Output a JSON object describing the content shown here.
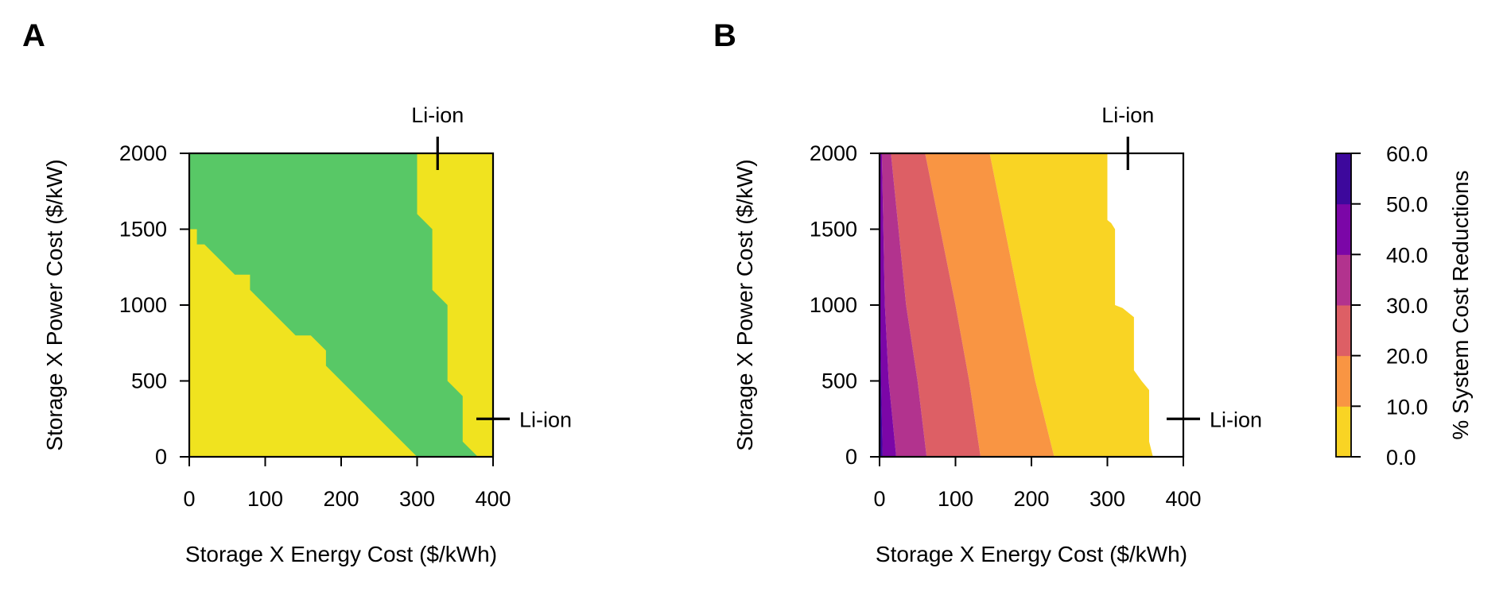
{
  "colors": {
    "green": "#58c866",
    "yellow": "#f0e31f",
    "plasma": [
      "#f9d424",
      "#f99543",
      "#dd5f65",
      "#b2338e",
      "#7b06a7",
      "#3d089c"
    ]
  },
  "chart_data": [
    {
      "type": "heatmap",
      "panel": "A",
      "xlabel": "Storage X Energy Cost ($/kWh)",
      "ylabel": "Storage X Power Cost ($/kW)",
      "xlim": [
        0,
        400
      ],
      "ylim": [
        0,
        2000
      ],
      "xticks": [
        "0",
        "100",
        "200",
        "300",
        "400"
      ],
      "yticks": [
        "0",
        "500",
        "1000",
        "1500",
        "2000"
      ],
      "regions": [
        {
          "color": "#58c866",
          "points": [
            [
              0,
              2000
            ],
            [
              300,
              2000
            ],
            [
              300,
              1600
            ],
            [
              320,
              1500
            ],
            [
              320,
              1100
            ],
            [
              340,
              1000
            ],
            [
              340,
              500
            ],
            [
              360,
              400
            ],
            [
              360,
              100
            ],
            [
              380,
              0
            ],
            [
              300,
              0
            ],
            [
              180,
              600
            ],
            [
              180,
              700
            ],
            [
              160,
              800
            ],
            [
              140,
              800
            ],
            [
              80,
              1100
            ],
            [
              80,
              1200
            ],
            [
              60,
              1200
            ],
            [
              20,
              1400
            ],
            [
              10,
              1400
            ],
            [
              10,
              1500
            ],
            [
              0,
              1500
            ]
          ]
        }
      ],
      "markers": [
        {
          "label": "Li-ion",
          "orientation": "vertical",
          "x": 327
        },
        {
          "label": "Li-ion",
          "orientation": "horizontal",
          "y": 250
        }
      ]
    },
    {
      "type": "heatmap",
      "panel": "B",
      "xlabel": "Storage X Energy Cost ($/kWh)",
      "ylabel": "Storage X Power Cost ($/kW)",
      "xlim": [
        0,
        400
      ],
      "ylim": [
        0,
        2000
      ],
      "xticks": [
        "0",
        "100",
        "200",
        "300",
        "400"
      ],
      "yticks": [
        "0",
        "500",
        "1000",
        "1500",
        "2000"
      ],
      "contour_boundaries": [
        {
          "level": 0.0,
          "points": [
            [
              300,
              2000
            ],
            [
              300,
              1560
            ],
            [
              305,
              1540
            ],
            [
              310,
              1500
            ],
            [
              310,
              1000
            ],
            [
              320,
              980
            ],
            [
              335,
              920
            ],
            [
              335,
              570
            ],
            [
              345,
              500
            ],
            [
              355,
              440
            ],
            [
              355,
              100
            ],
            [
              360,
              0
            ]
          ]
        },
        {
          "level": 10.0,
          "points": [
            [
              145,
              2000
            ],
            [
              165,
              1500
            ],
            [
              185,
              1000
            ],
            [
              205,
              500
            ],
            [
              230,
              0
            ]
          ]
        },
        {
          "level": 20.0,
          "points": [
            [
              60,
              2000
            ],
            [
              80,
              1500
            ],
            [
              100,
              1000
            ],
            [
              118,
              500
            ],
            [
              133,
              0
            ]
          ]
        },
        {
          "level": 30.0,
          "points": [
            [
              15,
              2000
            ],
            [
              25,
              1500
            ],
            [
              35,
              1000
            ],
            [
              50,
              500
            ],
            [
              62,
              0
            ]
          ]
        },
        {
          "level": 40.0,
          "points": [
            [
              3,
              2000
            ],
            [
              5,
              1500
            ],
            [
              7,
              1000
            ],
            [
              12,
              500
            ],
            [
              22,
              0
            ]
          ]
        },
        {
          "level": 50.0,
          "points": [
            [
              0,
              1200
            ],
            [
              2,
              500
            ],
            [
              4,
              0
            ]
          ]
        }
      ],
      "markers": [
        {
          "label": "Li-ion",
          "orientation": "vertical",
          "x": 327
        },
        {
          "label": "Li-ion",
          "orientation": "horizontal",
          "y": 250
        }
      ],
      "colorbar": {
        "label": "% System Cost Reductions",
        "levels": [
          "0.0",
          "10.0",
          "20.0",
          "30.0",
          "40.0",
          "50.0",
          "60.0"
        ]
      }
    }
  ]
}
